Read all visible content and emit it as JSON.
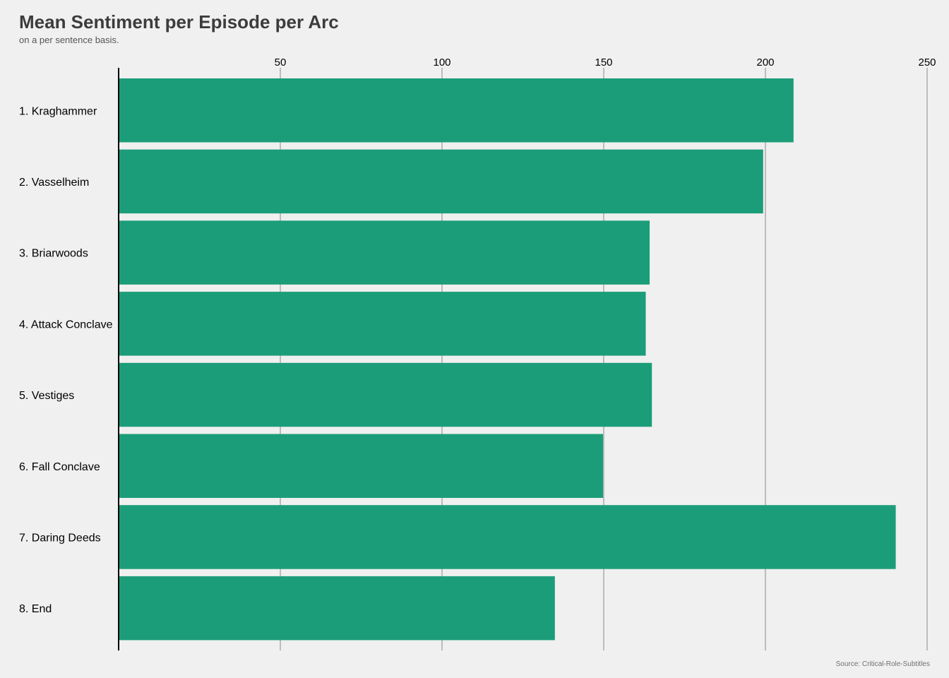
{
  "title": "Mean Sentiment per Episode per Arc",
  "subtitle": "on a per sentence basis.",
  "caption": "Source: Critical-Role-Subtitles",
  "colors": {
    "bar": "#1c9d79",
    "background": "#f0f0f0",
    "grid": "#9a9a9a",
    "axis": "#000000",
    "text": "#000000"
  },
  "chart_data": {
    "type": "bar",
    "orientation": "horizontal",
    "categories": [
      "1. Kraghammer",
      "2. Vasselheim",
      "3. Briarwoods",
      "4. Attack Conclave",
      "5. Vestiges",
      "6. Fall Conclave",
      "7. Daring Deeds",
      "8. End"
    ],
    "values": [
      208.7,
      199.3,
      164.2,
      163.0,
      164.9,
      149.8,
      240.3,
      134.9
    ],
    "xlim": [
      0,
      250
    ],
    "x_ticks": [
      50,
      100,
      150,
      200,
      250
    ],
    "x_axis_position": "top",
    "grid": "vertical",
    "legend": "none"
  }
}
